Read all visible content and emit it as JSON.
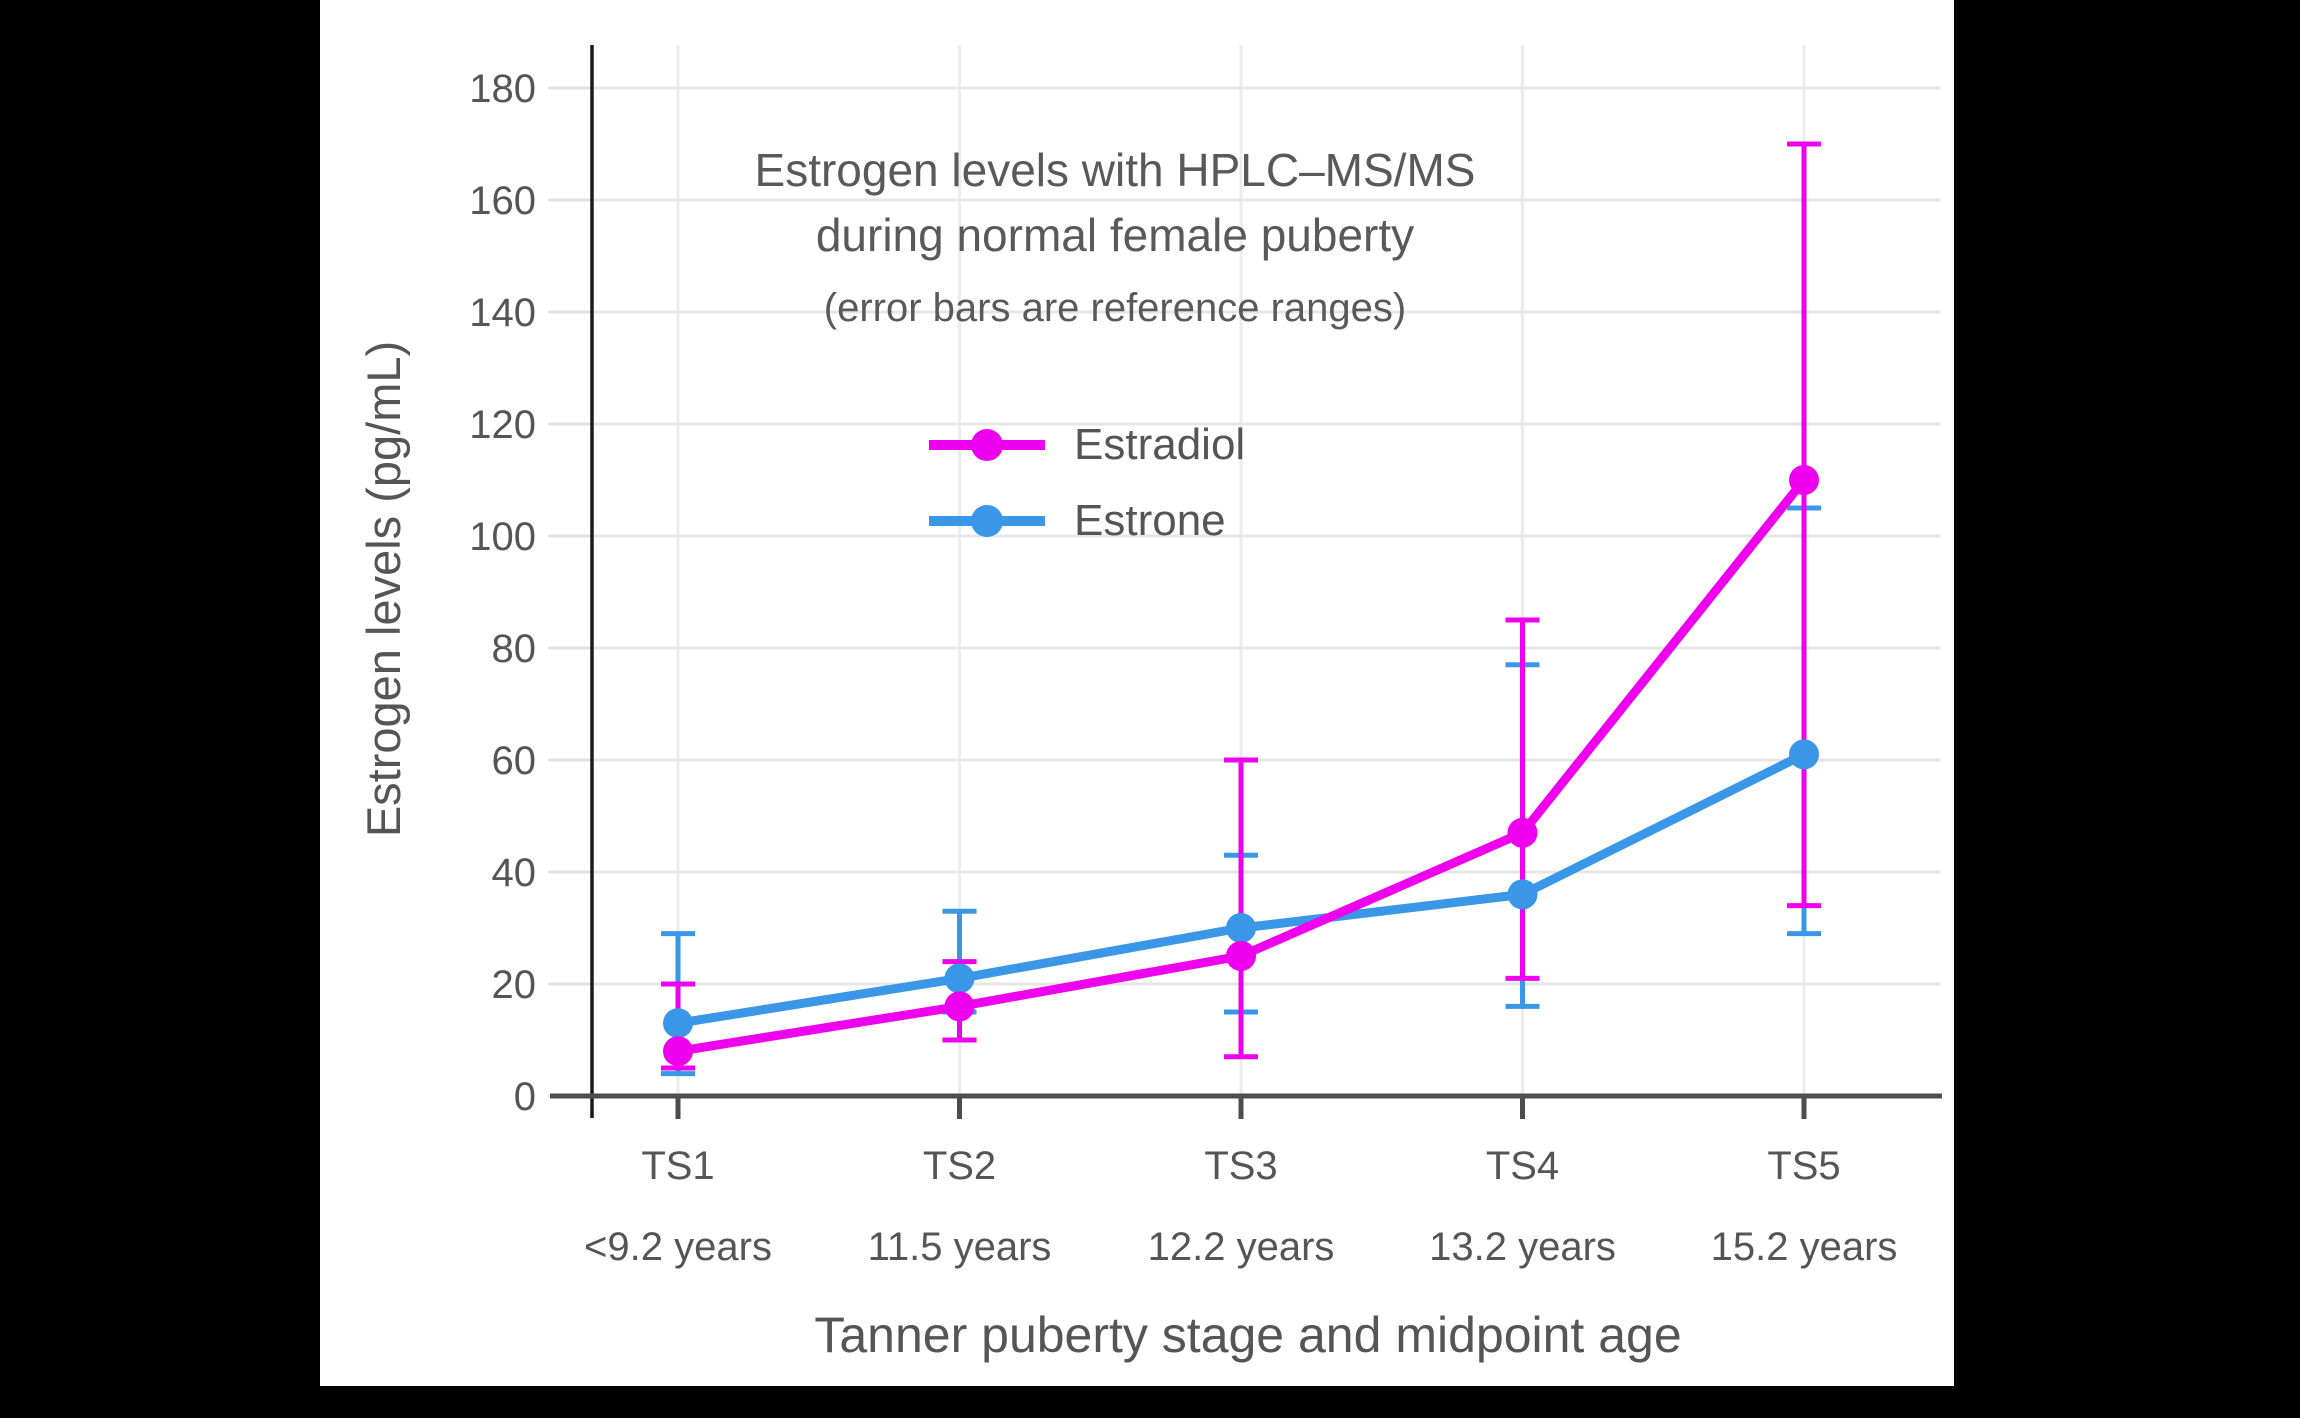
{
  "figure": {
    "title_line1": "Estrogen levels with HPLC–MS/MS",
    "title_line2": "during normal female puberty",
    "subtitle": "(error bars are reference ranges)"
  },
  "chart_data": {
    "type": "line",
    "title": "Estrogen levels with HPLC–MS/MS during normal female puberty",
    "subtitle": "(error bars are reference ranges)",
    "xlabel": "Tanner puberty stage and midpoint age",
    "ylabel": "Estrogen levels (pg/mL)",
    "categories": [
      "TS1",
      "TS2",
      "TS3",
      "TS4",
      "TS5"
    ],
    "category_ages": [
      "<9.2 years",
      "11.5 years",
      "12.2 years",
      "13.2 years",
      "15.2 years"
    ],
    "yticks": [
      0,
      20,
      40,
      60,
      80,
      100,
      120,
      140,
      160,
      180
    ],
    "ylim": [
      0,
      186
    ],
    "grid": true,
    "legend_position": "upper-left-inside",
    "error_bars": "reference ranges",
    "series": [
      {
        "name": "Estradiol",
        "color": "#EE00EE",
        "values": [
          8,
          16,
          25,
          47,
          110
        ],
        "range_low": [
          5,
          10,
          7,
          21,
          34
        ],
        "range_high": [
          20,
          24,
          60,
          85,
          170
        ]
      },
      {
        "name": "Estrone",
        "color": "#3A97E8",
        "values": [
          13,
          21,
          30,
          36,
          61
        ],
        "range_low": [
          4,
          15,
          15,
          16,
          29
        ],
        "range_high": [
          29,
          33,
          43,
          77,
          105
        ]
      }
    ]
  }
}
